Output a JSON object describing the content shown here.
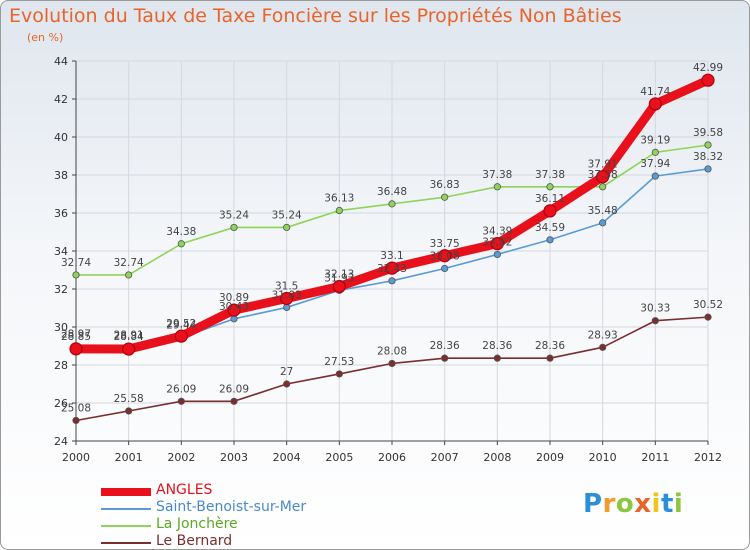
{
  "page": {
    "title": "Evolution du Taux de Taxe Foncière sur les Propriétés Non Bâties",
    "subtitle": "(en %)"
  },
  "logo": {
    "letters": [
      "P",
      "r",
      "o",
      "x",
      "i",
      "t",
      "i"
    ],
    "colors": [
      "#2b8fd8",
      "#f39a2b",
      "#8ec63f",
      "#e8642a",
      "#f0c419",
      "#2b8fd8",
      "#8ec63f"
    ]
  },
  "chart_data": {
    "type": "line",
    "title": "Evolution du Taux de Taxe Foncière sur les Propriétés Non Bâties",
    "ylabel": "(en %)",
    "xlabel": "",
    "x": [
      "2000",
      "2001",
      "2002",
      "2003",
      "2004",
      "2005",
      "2006",
      "2007",
      "2008",
      "2009",
      "2010",
      "2011",
      "2012"
    ],
    "ylim": [
      24,
      44
    ],
    "yticks": [
      24,
      26,
      28,
      30,
      32,
      34,
      36,
      38,
      40,
      42,
      44
    ],
    "grid": true,
    "legend_position": "bottom-left",
    "series": [
      {
        "name": "ANGLES",
        "color": "#e8101a",
        "values": [
          28.85,
          28.84,
          29.52,
          30.89,
          31.5,
          32.13,
          33.1,
          33.75,
          34.39,
          36.11,
          37.91,
          41.74,
          42.99
        ],
        "labels": [
          "28.85",
          "28.84",
          "29.52",
          "30.89",
          "31.5",
          "32.13",
          "33.1",
          "33.75",
          "34.39",
          "36.11",
          "37.91",
          "41.74",
          "42.99"
        ]
      },
      {
        "name": "Saint-Benoist-sur-Mer",
        "color": "#5a9bd5",
        "values": [
          28.97,
          28.91,
          29.44,
          30.43,
          31.03,
          31.93,
          32.43,
          33.08,
          33.82,
          34.59,
          35.48,
          37.94,
          38.32
        ],
        "labels": [
          "28.97",
          "28.91",
          "29.44",
          "30.43",
          "31.03",
          "31.93",
          "32.43",
          "33.08",
          "33.82",
          "34.59",
          "35.48",
          "37.94",
          "38.32"
        ]
      },
      {
        "name": "La Jonchère",
        "color": "#8ed35a",
        "values": [
          32.74,
          32.74,
          34.38,
          35.24,
          35.24,
          36.13,
          36.48,
          36.83,
          37.38,
          37.38,
          37.38,
          39.19,
          39.58
        ],
        "labels": [
          "32.74",
          "32.74",
          "34.38",
          "35.24",
          "35.24",
          "36.13",
          "36.48",
          "36.83",
          "37.38",
          "37.38",
          "37.38",
          "39.19",
          "39.58"
        ]
      },
      {
        "name": "Le Bernard",
        "color": "#7a2e2e",
        "values": [
          25.08,
          25.58,
          26.09,
          26.09,
          27,
          27.53,
          28.08,
          28.36,
          28.36,
          28.36,
          28.93,
          30.33,
          30.52
        ],
        "labels": [
          "25.08",
          "25.58",
          "26.09",
          "26.09",
          "27",
          "27.53",
          "28.08",
          "28.36",
          "28.36",
          "28.36",
          "28.93",
          "30.33",
          "30.52"
        ]
      }
    ]
  }
}
